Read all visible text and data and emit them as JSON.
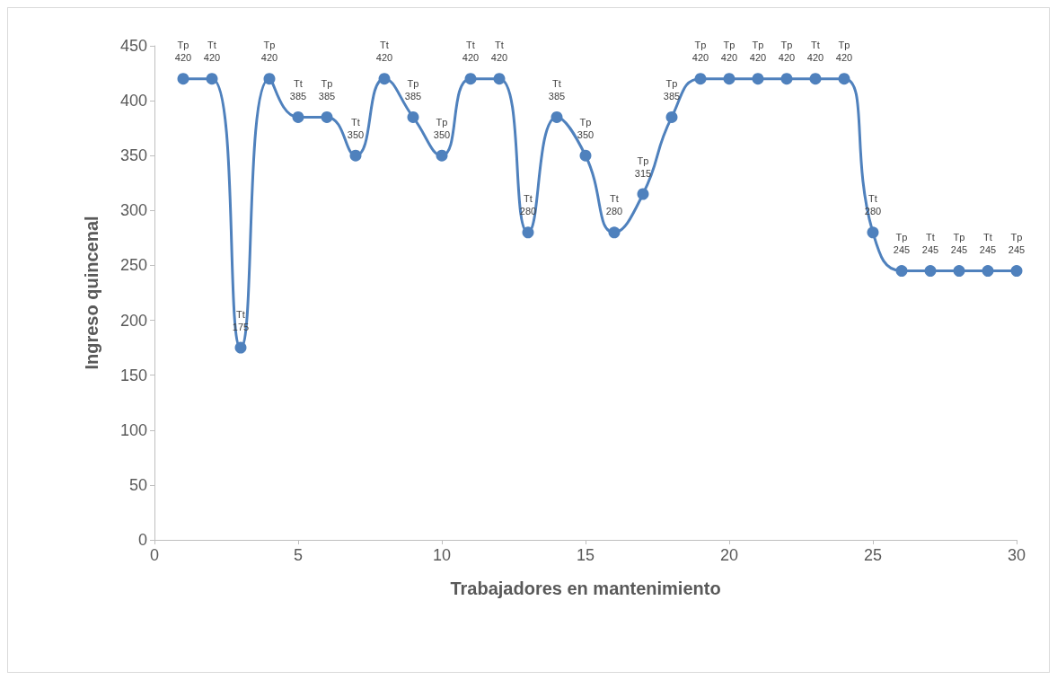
{
  "chart_data": {
    "type": "line",
    "xlabel": "Trabajadores en mantenimiento",
    "ylabel": "Ingreso quincenal",
    "x": [
      1,
      2,
      3,
      4,
      5,
      6,
      7,
      8,
      9,
      10,
      11,
      12,
      13,
      14,
      15,
      16,
      17,
      18,
      19,
      20,
      21,
      22,
      23,
      24,
      25,
      26,
      27,
      28,
      29,
      30
    ],
    "series": [
      {
        "color": "#4f81bd",
        "values": [
          420,
          420,
          175,
          420,
          385,
          385,
          350,
          420,
          385,
          350,
          420,
          420,
          280,
          385,
          350,
          280,
          315,
          385,
          420,
          420,
          420,
          420,
          420,
          420,
          280,
          245,
          245,
          245,
          245,
          245
        ],
        "value_labels": [
          "Tp\n420",
          "Tt\n420",
          "Tt\n175",
          "Tp\n420",
          "Tt\n385",
          "Tp\n385",
          "Tt\n350",
          "Tt\n420",
          "Tp\n385",
          "Tp\n350",
          "Tt\n420",
          "Tt\n420",
          "Tt\n280",
          "Tt\n385",
          "Tp\n350",
          "Tt\n280",
          "Tp\n315",
          "Tp\n385",
          "Tp\n420",
          "Tp\n420",
          "Tp\n420",
          "Tp\n420",
          "Tt\n420",
          "Tp\n420",
          "Tt\n280",
          "Tp\n245",
          "Tt\n245",
          "Tp\n245",
          "Tt\n245",
          "Tp\n245"
        ]
      }
    ],
    "xlim": [
      0,
      30
    ],
    "xticks": [
      0,
      5,
      10,
      15,
      20,
      25,
      30
    ],
    "ylim": [
      0,
      450
    ],
    "yticks": [
      0,
      50,
      100,
      150,
      200,
      250,
      300,
      350,
      400,
      450
    ],
    "grid": false,
    "marker": "circle",
    "line_style": "solid"
  }
}
